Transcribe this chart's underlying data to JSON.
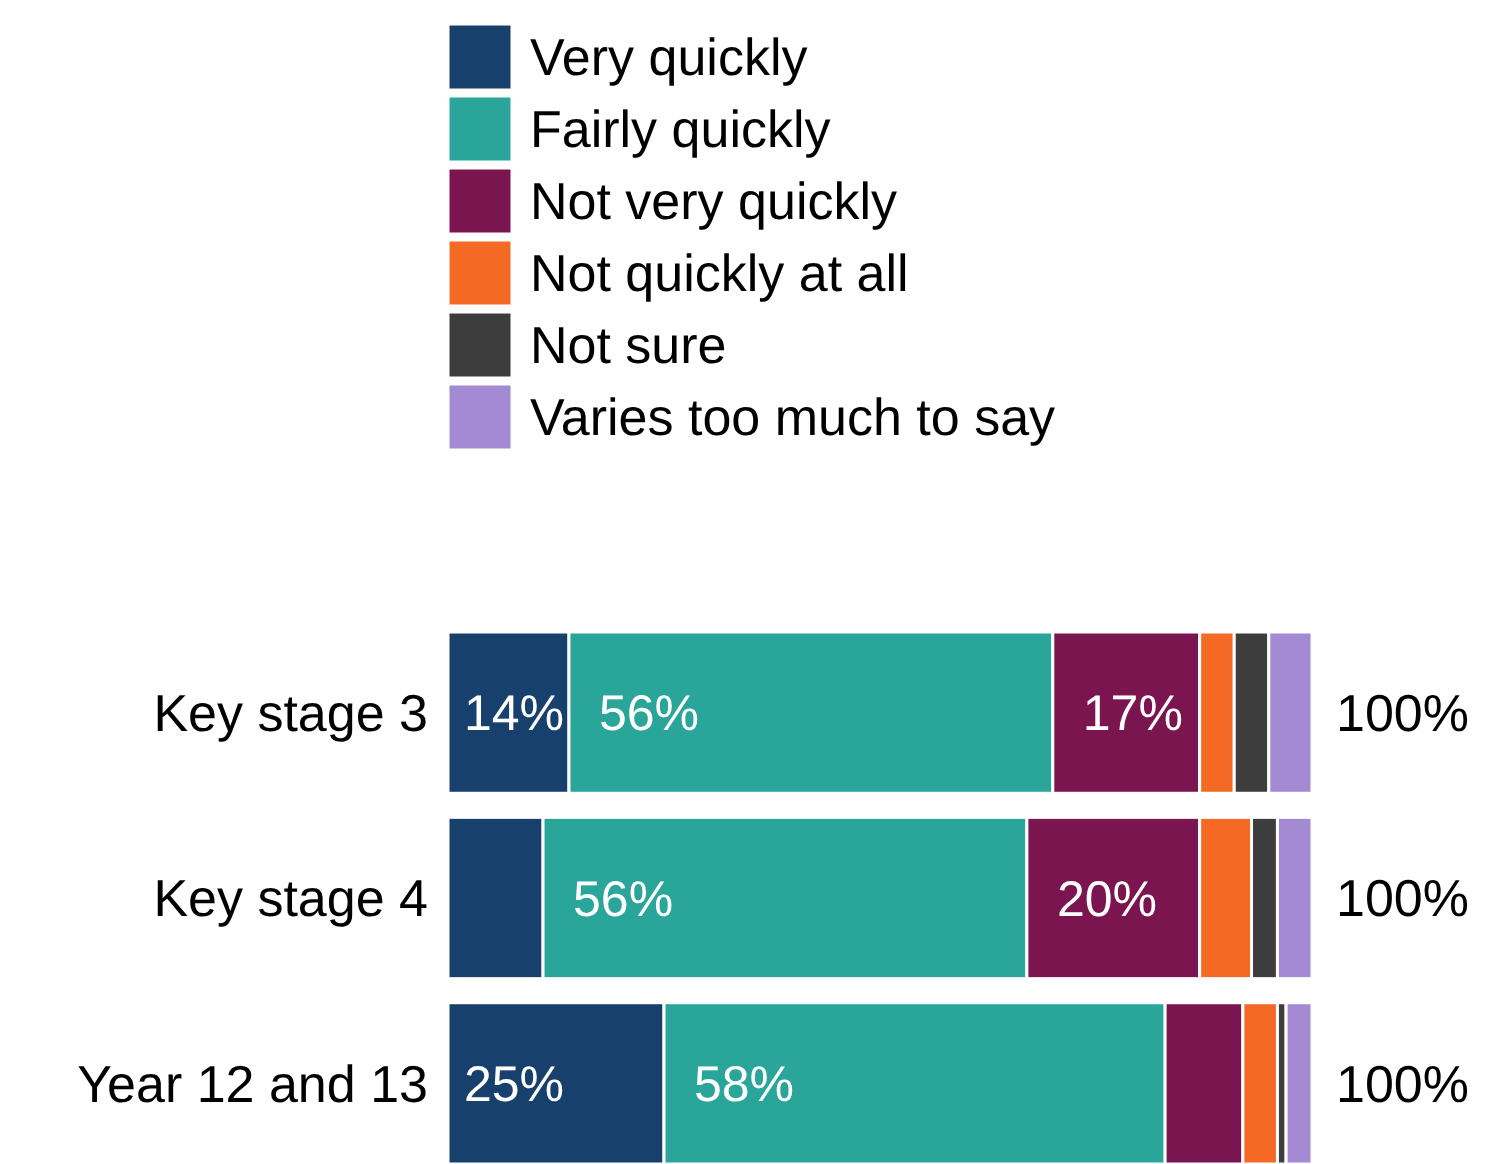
{
  "chart_data": {
    "type": "bar",
    "orientation": "horizontal",
    "stacked": true,
    "categories": [
      "Key stage 3",
      "Key stage 4",
      "Year 12 and 13"
    ],
    "xlim": [
      0,
      100
    ],
    "tick_labels": "y",
    "legend": "top",
    "totals": [
      "100%",
      "100%",
      "100%"
    ],
    "series": [
      {
        "name": "Very quickly",
        "color": "#17406d",
        "values": [
          14,
          11,
          25
        ],
        "value_labels": [
          "14%",
          null,
          "25%"
        ]
      },
      {
        "name": "Fairly quickly",
        "color": "#2aa59a",
        "values": [
          56,
          56,
          58
        ],
        "value_labels": [
          "56%",
          "56%",
          "58%"
        ]
      },
      {
        "name": "Not very quickly",
        "color": "#7b1550",
        "values": [
          17,
          20,
          9
        ],
        "value_labels": [
          "17%",
          "20%",
          null
        ]
      },
      {
        "name": "Not quickly at all",
        "color": "#f46a25",
        "values": [
          4,
          6,
          4
        ],
        "value_labels": [
          null,
          null,
          null
        ]
      },
      {
        "name": "Not sure",
        "color": "#3d3d3d",
        "values": [
          4,
          3,
          1
        ],
        "value_labels": [
          null,
          null,
          null
        ]
      },
      {
        "name": "Varies too much to say",
        "color": "#a48ad3",
        "values": [
          5,
          4,
          3
        ],
        "value_labels": [
          null,
          null,
          null
        ]
      }
    ]
  }
}
